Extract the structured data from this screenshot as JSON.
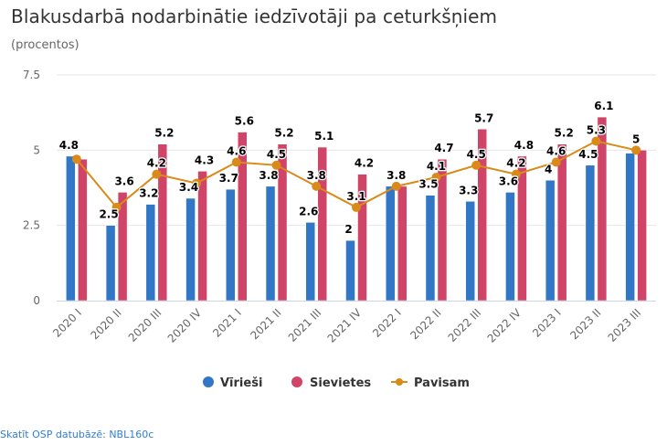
{
  "header": {
    "title": "Blakusdarbā nodarbinātie iedzīvotāji pa ceturkšņiem",
    "subtitle": "(procentos)"
  },
  "source_link": "Skatīt OSP datubāzē: NBL160c",
  "colors": {
    "men": "#3277c6",
    "women": "#cf4467",
    "total": "#d98a19",
    "grid": "#e6e6e6",
    "axis": "#ccd6eb"
  },
  "chart_data": {
    "type": "bar",
    "title": "Blakusdarbā nodarbinātie iedzīvotāji pa ceturkšņiem",
    "subtitle": "(procentos)",
    "xlabel": "",
    "ylabel": "",
    "ylim": [
      0,
      7.5
    ],
    "yticks": [
      "0",
      "2.5",
      "5",
      "7.5"
    ],
    "ytick_values": [
      0,
      2.5,
      5,
      7.5
    ],
    "grid": true,
    "legend_position": "bottom-center",
    "categories": [
      "2020 I",
      "2020 II",
      "2020 III",
      "2020 IV",
      "2021 I",
      "2021 II",
      "2021 III",
      "2021 IV",
      "2022 I",
      "2022 II",
      "2022 III",
      "2022 IV",
      "2023 I",
      "2023 II",
      "2023 III"
    ],
    "series": [
      {
        "name": "Vīrieši",
        "type": "bar",
        "color": "#3277c6",
        "values": [
          4.8,
          2.5,
          3.2,
          3.4,
          3.7,
          3.8,
          2.6,
          2.0,
          3.8,
          3.5,
          3.3,
          3.6,
          4.0,
          4.5,
          4.9
        ],
        "labels": [
          "4.8",
          "2.5",
          "3.2",
          "3.4",
          "3.7",
          "3.8",
          "2.6",
          "2",
          "",
          "3.5",
          "3.3",
          "3.6",
          "4",
          "4.5",
          ""
        ]
      },
      {
        "name": "Sievietes",
        "type": "bar",
        "color": "#cf4467",
        "values": [
          4.7,
          3.6,
          5.2,
          4.3,
          5.6,
          5.2,
          5.1,
          4.2,
          3.8,
          4.7,
          5.7,
          4.8,
          5.2,
          6.1,
          5.0
        ],
        "labels": [
          "",
          "3.6",
          "5.2",
          "4.3",
          "5.6",
          "5.2",
          "5.1",
          "4.2",
          "",
          "4.7",
          "5.7",
          "4.8",
          "5.2",
          "6.1",
          ""
        ]
      },
      {
        "name": "Pavisam",
        "type": "line",
        "color": "#d98a19",
        "values": [
          4.7,
          3.1,
          4.2,
          3.9,
          4.6,
          4.5,
          3.8,
          3.1,
          3.8,
          4.1,
          4.5,
          4.2,
          4.6,
          5.3,
          5.0
        ],
        "labels": [
          "",
          "",
          "4.2",
          "",
          "4.6",
          "4.5",
          "3.8",
          "3.1",
          "3.8",
          "4.1",
          "4.5",
          "4.2",
          "4.6",
          "5.3",
          "5"
        ]
      }
    ]
  }
}
